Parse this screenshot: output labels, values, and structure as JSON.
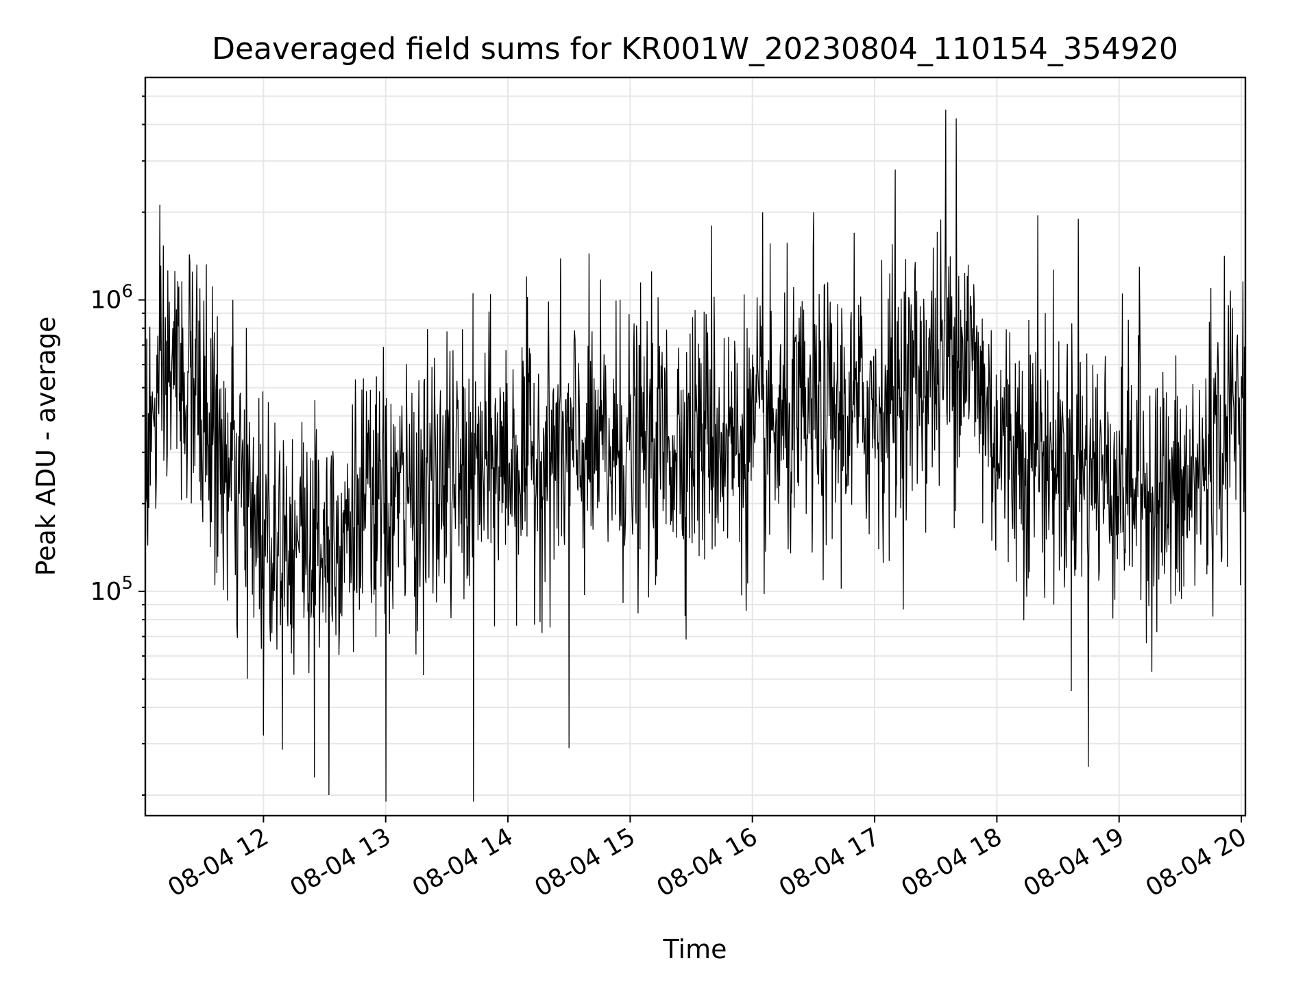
{
  "chart_data": {
    "type": "line",
    "title": "Deaveraged field sums for KR001W_20230804_110154_354920",
    "xlabel": "Time",
    "ylabel": "Peak ADU - average",
    "yscale": "log",
    "x_start": "2023-08-04T11:02:00",
    "x_end": "2023-08-04T20:02:00",
    "xlim": [
      "2023-08-04T11:02:00",
      "2023-08-04T20:02:00"
    ],
    "ylim": [
      17000,
      5800000
    ],
    "grid": true,
    "x_ticks": [
      {
        "time": "2023-08-04T12:00:00",
        "label": "08-04 12"
      },
      {
        "time": "2023-08-04T13:00:00",
        "label": "08-04 13"
      },
      {
        "time": "2023-08-04T14:00:00",
        "label": "08-04 14"
      },
      {
        "time": "2023-08-04T15:00:00",
        "label": "08-04 15"
      },
      {
        "time": "2023-08-04T16:00:00",
        "label": "08-04 16"
      },
      {
        "time": "2023-08-04T17:00:00",
        "label": "08-04 17"
      },
      {
        "time": "2023-08-04T18:00:00",
        "label": "08-04 18"
      },
      {
        "time": "2023-08-04T19:00:00",
        "label": "08-04 19"
      },
      {
        "time": "2023-08-04T20:00:00",
        "label": "08-04 20"
      }
    ],
    "y_ticks": [
      {
        "value": 100000,
        "base": "10",
        "exp": "5"
      },
      {
        "value": 1000000,
        "base": "10",
        "exp": "6"
      }
    ],
    "series": [
      {
        "color": "#000000",
        "trend": [
          {
            "time": "2023-08-04T11:02:00",
            "value": 300000
          },
          {
            "time": "2023-08-04T11:15:00",
            "value": 600000
          },
          {
            "time": "2023-08-04T11:30:00",
            "value": 420000
          },
          {
            "time": "2023-08-04T11:45:00",
            "value": 220000
          },
          {
            "time": "2023-08-04T12:00:00",
            "value": 170000
          },
          {
            "time": "2023-08-04T12:20:00",
            "value": 150000
          },
          {
            "time": "2023-08-04T12:40:00",
            "value": 175000
          },
          {
            "time": "2023-08-04T13:00:00",
            "value": 200000
          },
          {
            "time": "2023-08-04T13:30:00",
            "value": 230000
          },
          {
            "time": "2023-08-04T14:00:00",
            "value": 280000
          },
          {
            "time": "2023-08-04T14:30:00",
            "value": 300000
          },
          {
            "time": "2023-08-04T15:00:00",
            "value": 300000
          },
          {
            "time": "2023-08-04T15:30:00",
            "value": 340000
          },
          {
            "time": "2023-08-04T16:00:00",
            "value": 330000
          },
          {
            "time": "2023-08-04T16:30:00",
            "value": 380000
          },
          {
            "time": "2023-08-04T17:00:00",
            "value": 430000
          },
          {
            "time": "2023-08-04T17:30:00",
            "value": 600000
          },
          {
            "time": "2023-08-04T17:45:00",
            "value": 700000
          },
          {
            "time": "2023-08-04T18:00:00",
            "value": 330000
          },
          {
            "time": "2023-08-04T18:30:00",
            "value": 280000
          },
          {
            "time": "2023-08-04T19:00:00",
            "value": 250000
          },
          {
            "time": "2023-08-04T19:30:00",
            "value": 200000
          },
          {
            "time": "2023-08-04T19:45:00",
            "value": 280000
          },
          {
            "time": "2023-08-04T20:02:00",
            "value": 500000
          }
        ],
        "peaks": [
          {
            "time": "2023-08-04T11:25:00",
            "value": 1250000
          },
          {
            "time": "2023-08-04T11:45:00",
            "value": 1000000
          },
          {
            "time": "2023-08-04T12:00:00",
            "value": 32000
          },
          {
            "time": "2023-08-04T12:25:00",
            "value": 23000
          },
          {
            "time": "2023-08-04T12:32:00",
            "value": 20000
          },
          {
            "time": "2023-08-04T13:00:00",
            "value": 19000
          },
          {
            "time": "2023-08-04T13:30:00",
            "value": 780000
          },
          {
            "time": "2023-08-04T13:43:00",
            "value": 19000
          },
          {
            "time": "2023-08-04T14:30:00",
            "value": 29000
          },
          {
            "time": "2023-08-04T14:55:00",
            "value": 1000000
          },
          {
            "time": "2023-08-04T15:40:00",
            "value": 1800000
          },
          {
            "time": "2023-08-04T16:05:00",
            "value": 2000000
          },
          {
            "time": "2023-08-04T16:30:00",
            "value": 2000000
          },
          {
            "time": "2023-08-04T16:50:00",
            "value": 1700000
          },
          {
            "time": "2023-08-04T17:10:00",
            "value": 2800000
          },
          {
            "time": "2023-08-04T17:35:00",
            "value": 4500000
          },
          {
            "time": "2023-08-04T17:40:00",
            "value": 4200000
          },
          {
            "time": "2023-08-04T18:20:00",
            "value": 1950000
          },
          {
            "time": "2023-08-04T18:40:00",
            "value": 1900000
          },
          {
            "time": "2023-08-04T18:45:00",
            "value": 25000
          },
          {
            "time": "2023-08-04T19:10:00",
            "value": 1300000
          },
          {
            "time": "2023-08-04T19:45:00",
            "value": 1100000
          }
        ]
      }
    ]
  }
}
